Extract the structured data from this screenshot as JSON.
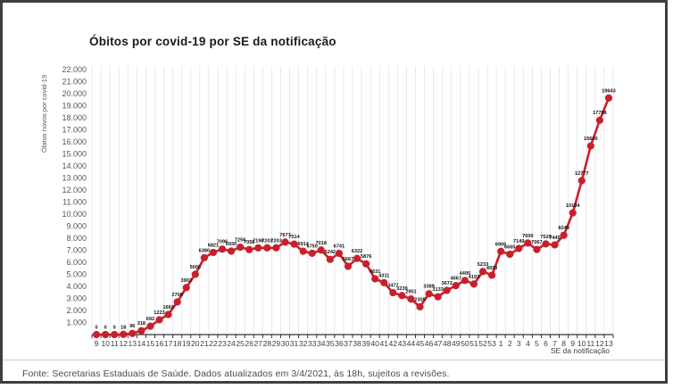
{
  "chart_data": {
    "type": "line",
    "title": "Óbitos por covid-19 por SE da notificação",
    "xlabel": "SE da notificação",
    "ylabel": "Óbitos novos por covid-19",
    "categories": [
      "9",
      "10",
      "11",
      "12",
      "13",
      "14",
      "15",
      "16",
      "17",
      "18",
      "19",
      "20",
      "21",
      "22",
      "23",
      "24",
      "25",
      "26",
      "27",
      "28",
      "29",
      "30",
      "31",
      "32",
      "33",
      "34",
      "35",
      "36",
      "37",
      "38",
      "39",
      "40",
      "41",
      "42",
      "43",
      "44",
      "45",
      "46",
      "47",
      "48",
      "49",
      "50",
      "51",
      "52",
      "53",
      "1",
      "2",
      "3",
      "4",
      "5",
      "6",
      "7",
      "8",
      "9",
      "10",
      "11",
      "12",
      "13"
    ],
    "values": [
      0,
      0,
      0,
      18,
      96,
      318,
      692,
      1223,
      1669,
      2708,
      3903,
      5006,
      6380,
      6821,
      7096,
      6930,
      7256,
      7058,
      7198,
      7203,
      7203,
      7677,
      7514,
      6914,
      6750,
      7018,
      6242,
      6741,
      5667,
      6322,
      5876,
      4631,
      4311,
      3477,
      3239,
      2951,
      2305,
      3389,
      3133,
      3672,
      4067,
      4495,
      4193,
      5233,
      4930,
      6906,
      6665,
      7149,
      7600,
      7067,
      7529,
      7445,
      8244,
      10104,
      12777,
      15660,
      17798,
      19643
    ],
    "y_ticks": [
      "22.000",
      "21.000",
      "20.000",
      "19.000",
      "18.000",
      "17.000",
      "16.000",
      "15.000",
      "14.000",
      "13.000",
      "12.000",
      "11.000",
      "10.000",
      "9.000",
      "8.000",
      "7.000",
      "6.000",
      "5.000",
      "4.000",
      "3.000",
      "2.000",
      "1.000"
    ],
    "ylim": [
      0,
      22000
    ],
    "grid": "vertical-only",
    "legend": "none",
    "series_color": "#c8202a",
    "marker_color": "#c8202a",
    "data_label_color": "#111111",
    "axis_color": "#333333",
    "tick_label_color": "#555555",
    "gridline_color": "#e4e4e4"
  },
  "footer": {
    "source_text": "Fonte: Secretarias Estaduais de Saúde. Dados atualizados em 3/4/2021, às 18h, sujeitos a revisões."
  }
}
